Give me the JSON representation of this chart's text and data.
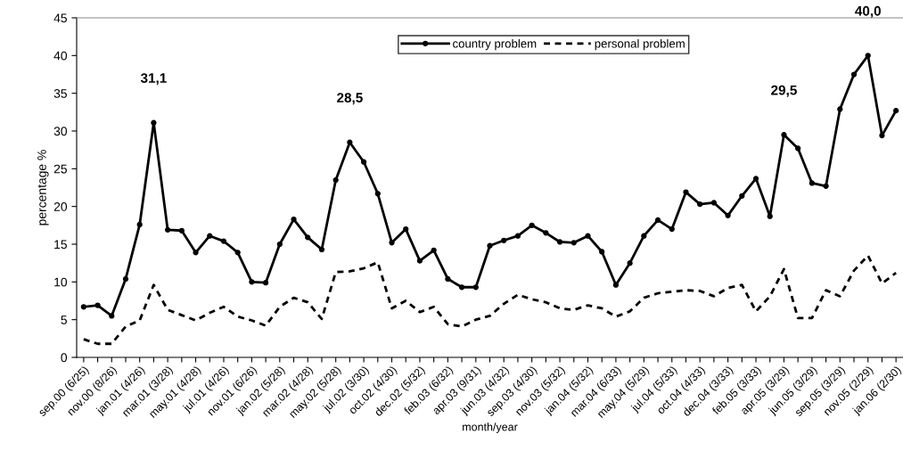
{
  "chart_data": {
    "type": "line",
    "xlabel": "month/year",
    "ylabel": "percentage %",
    "categories": [
      "sep.00 (6/25)",
      null,
      "nov.00 (8/26)",
      null,
      "jan.01 (4/26)",
      null,
      "mar.01 (3/28)",
      null,
      "may.01 (4/28)",
      null,
      "jul.01 (4/26)",
      null,
      "nov.01 (6/26)",
      null,
      "jan.02 (5/28)",
      null,
      "mar.02 (4/28)",
      null,
      "may.02 (5/28)",
      null,
      "jul.02 (3/30)",
      null,
      "oct.02 (4/30)",
      null,
      "dec.02 (5/32)",
      null,
      "feb.03 (6/32)",
      null,
      "apr.03 (9/31)",
      null,
      "jun.03 (4/32)",
      null,
      "sep.03 (4/30)",
      null,
      "nov.03 (5/32)",
      null,
      "jan.04 (5/32)",
      null,
      "mar.04 (6/33)",
      null,
      "may.04 (5/29)",
      null,
      "jul.04 (5/33)",
      null,
      "oct.04 (4/33)",
      null,
      "dec.04 (3/33)",
      null,
      "feb.05 (3/33)",
      null,
      "apr.05 (3/29)",
      null,
      "jun.05 (3/29)",
      null,
      "sep.05 (3/29)",
      null,
      "nov.05 (2/29)",
      null,
      "jan.06 (2/30)"
    ],
    "series": [
      {
        "name": "country problem",
        "color": "#000000",
        "marker": "circle",
        "line_style": "solid",
        "values": [
          6.7,
          6.9,
          5.5,
          10.4,
          17.6,
          31.1,
          16.9,
          16.8,
          13.9,
          16.1,
          15.4,
          13.9,
          10.0,
          9.9,
          15.0,
          18.3,
          15.9,
          14.3,
          23.5,
          28.5,
          25.9,
          21.7,
          15.2,
          17.0,
          12.8,
          14.2,
          10.4,
          9.3,
          9.3,
          14.8,
          15.5,
          16.1,
          17.5,
          16.5,
          15.3,
          15.2,
          16.1,
          14.0,
          9.6,
          12.5,
          16.1,
          18.2,
          17.0,
          21.9,
          20.3,
          20.5,
          18.8,
          21.4,
          23.7,
          18.7,
          29.5,
          27.7,
          23.1,
          22.7,
          32.9,
          37.5,
          40.0,
          29.4,
          32.7
        ],
        "value_labels": [
          null,
          null,
          null,
          null,
          null,
          "31,1",
          null,
          null,
          null,
          null,
          null,
          null,
          null,
          null,
          null,
          null,
          null,
          null,
          null,
          "28,5",
          null,
          null,
          null,
          null,
          null,
          null,
          null,
          null,
          null,
          null,
          null,
          null,
          null,
          null,
          null,
          null,
          null,
          null,
          null,
          null,
          null,
          null,
          null,
          null,
          null,
          null,
          null,
          null,
          null,
          null,
          "29,5",
          null,
          null,
          null,
          null,
          null,
          "40,0",
          null,
          null
        ]
      },
      {
        "name": "personal problem",
        "color": "#000000",
        "marker": "none",
        "line_style": "dashed",
        "values": [
          2.4,
          1.8,
          1.8,
          4.1,
          4.9,
          9.6,
          6.3,
          5.6,
          4.9,
          5.9,
          6.7,
          5.4,
          4.9,
          4.2,
          6.7,
          7.9,
          7.3,
          5.1,
          11.3,
          11.4,
          11.8,
          12.6,
          6.5,
          7.5,
          6.0,
          6.7,
          4.4,
          4.1,
          5.0,
          5.5,
          7.1,
          8.3,
          7.7,
          7.3,
          6.5,
          6.3,
          6.9,
          6.5,
          5.4,
          6.1,
          7.9,
          8.5,
          8.7,
          8.9,
          8.8,
          8.1,
          9.2,
          9.6,
          6.1,
          8.1,
          11.7,
          5.2,
          5.2,
          8.9,
          8.1,
          11.5,
          13.5,
          9.8,
          11.2
        ]
      }
    ],
    "ylim": [
      0,
      45
    ],
    "yticks": [
      0,
      5,
      10,
      15,
      20,
      25,
      30,
      35,
      40,
      45
    ],
    "legend": "top",
    "grid": false
  }
}
